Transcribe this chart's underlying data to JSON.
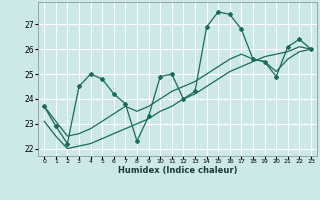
{
  "bg_color": "#cce8e8",
  "grid_color": "#ffffff",
  "line_color": "#1a6b5a",
  "xlabel": "Humidex (Indice chaleur)",
  "xlim": [
    -0.5,
    23.5
  ],
  "ylim": [
    21.7,
    27.9
  ],
  "yticks": [
    22,
    23,
    24,
    25,
    26,
    27
  ],
  "xticks": [
    0,
    1,
    2,
    3,
    4,
    5,
    6,
    7,
    8,
    9,
    10,
    11,
    12,
    13,
    14,
    15,
    16,
    17,
    18,
    19,
    20,
    21,
    22,
    23
  ],
  "line1_x": [
    0,
    1,
    2,
    3,
    4,
    5,
    6,
    7,
    8,
    9,
    10,
    11,
    12,
    13,
    14,
    15,
    16,
    17,
    18,
    19,
    20,
    21,
    22,
    23
  ],
  "line1_y": [
    23.7,
    22.9,
    22.2,
    24.5,
    25.0,
    24.8,
    24.2,
    23.8,
    22.3,
    23.3,
    24.9,
    25.0,
    24.0,
    24.3,
    26.9,
    27.5,
    27.4,
    26.8,
    25.6,
    25.5,
    24.9,
    26.1,
    26.4,
    26.0
  ],
  "line2_x": [
    0,
    1,
    2,
    3,
    4,
    5,
    6,
    7,
    8,
    9,
    10,
    11,
    12,
    13,
    14,
    15,
    16,
    17,
    18,
    19,
    20,
    21,
    22,
    23
  ],
  "line2_y": [
    23.1,
    22.5,
    22.0,
    22.1,
    22.2,
    22.4,
    22.6,
    22.8,
    23.0,
    23.2,
    23.5,
    23.7,
    24.0,
    24.2,
    24.5,
    24.8,
    25.1,
    25.3,
    25.5,
    25.7,
    25.8,
    25.9,
    26.1,
    26.0
  ],
  "line3_x": [
    0,
    1,
    2,
    3,
    4,
    5,
    6,
    7,
    8,
    9,
    10,
    11,
    12,
    13,
    14,
    15,
    16,
    17,
    18,
    19,
    20,
    21,
    22,
    23
  ],
  "line3_y": [
    23.7,
    23.1,
    22.5,
    22.6,
    22.8,
    23.1,
    23.4,
    23.7,
    23.5,
    23.7,
    24.0,
    24.3,
    24.5,
    24.7,
    25.0,
    25.3,
    25.6,
    25.8,
    25.6,
    25.5,
    25.1,
    25.6,
    25.9,
    26.0
  ]
}
